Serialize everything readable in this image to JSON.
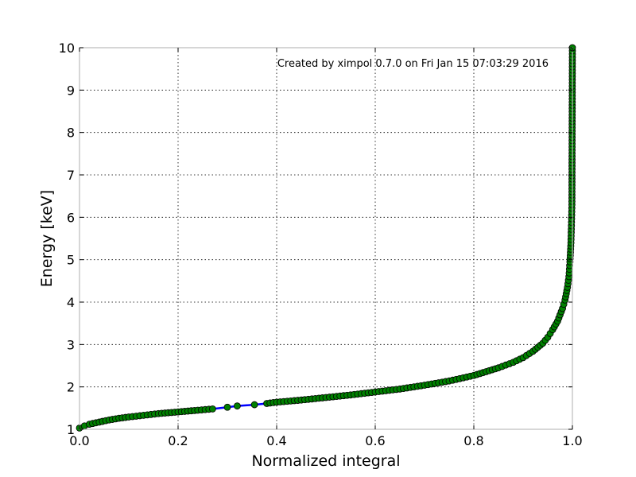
{
  "chart_data": {
    "type": "line",
    "xlabel": "Normalized integral",
    "ylabel": "Energy [keV]",
    "annotation": "Created by ximpol 0.7.0 on Fri Jan 15 07:03:29 2016",
    "xlim": [
      0.0,
      1.0
    ],
    "ylim": [
      1,
      10
    ],
    "xticks": [
      "0.0",
      "0.2",
      "0.4",
      "0.6",
      "0.8",
      "1.0"
    ],
    "yticks": [
      "1",
      "2",
      "3",
      "4",
      "5",
      "6",
      "7",
      "8",
      "9",
      "10"
    ],
    "grid": true,
    "line_color": "#0000ff",
    "marker_color": "#008000",
    "marker_edge_color": "#000000",
    "series": [
      {
        "x": [
          0.0,
          0.01,
          0.02,
          0.04,
          0.06,
          0.08,
          0.1,
          0.13,
          0.16,
          0.2,
          0.24,
          0.27,
          0.3,
          0.32,
          0.355,
          0.38,
          0.4,
          0.45,
          0.5,
          0.55,
          0.6,
          0.65,
          0.7,
          0.75,
          0.8,
          0.85,
          0.88,
          0.9,
          0.92,
          0.94,
          0.95,
          0.96,
          0.97,
          0.98,
          0.985,
          0.99,
          0.993,
          0.995,
          0.997,
          0.998,
          0.999,
          1.0
        ],
        "y": [
          1.03,
          1.08,
          1.12,
          1.17,
          1.22,
          1.26,
          1.29,
          1.33,
          1.37,
          1.41,
          1.45,
          1.48,
          1.52,
          1.55,
          1.58,
          1.61,
          1.64,
          1.69,
          1.75,
          1.81,
          1.88,
          1.95,
          2.04,
          2.14,
          2.27,
          2.45,
          2.58,
          2.69,
          2.84,
          3.03,
          3.17,
          3.35,
          3.55,
          3.85,
          4.05,
          4.35,
          4.6,
          4.95,
          5.4,
          5.8,
          6.3,
          10.0
        ]
      }
    ]
  }
}
